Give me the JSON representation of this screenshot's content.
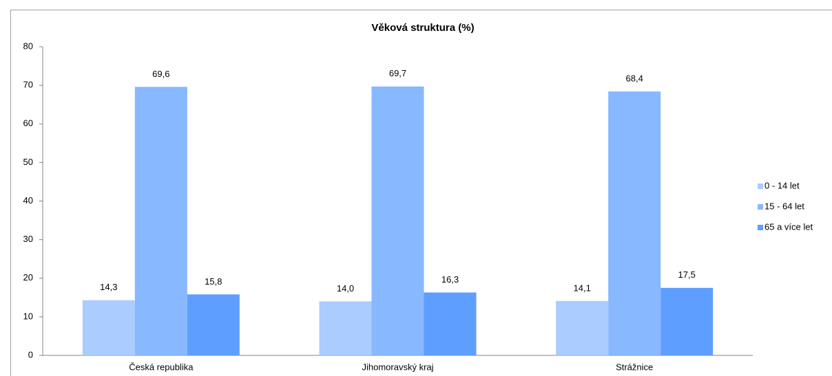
{
  "chart_data": {
    "type": "bar",
    "title": "Věková struktura (%)",
    "categories": [
      "Česká republika",
      "Jihomoravský kraj",
      "Strážnice"
    ],
    "series": [
      {
        "name": "0 - 14 let",
        "color": "#aaccff",
        "values": [
          14.3,
          14.0,
          14.1
        ],
        "value_labels": [
          "14,3",
          "14,0",
          "14,1"
        ]
      },
      {
        "name": "15 - 64 let",
        "color": "#88b8ff",
        "values": [
          69.6,
          69.7,
          68.4
        ],
        "value_labels": [
          "69,6",
          "69,7",
          "68,4"
        ]
      },
      {
        "name": "65 a více let",
        "color": "#5e9eff",
        "values": [
          15.8,
          16.3,
          17.5
        ],
        "value_labels": [
          "15,8",
          "16,3",
          "17,5"
        ]
      }
    ],
    "ylim": [
      0,
      80
    ],
    "yticks": [
      0,
      10,
      20,
      30,
      40,
      50,
      60,
      70,
      80
    ],
    "grid": false,
    "legend": "right"
  }
}
